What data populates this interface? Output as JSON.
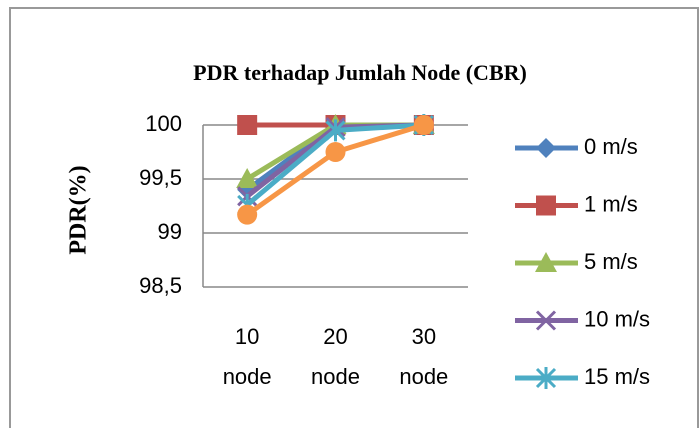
{
  "chart_data": {
    "type": "line",
    "title": "PDR terhadap Jumlah Node (CBR)",
    "y_label": "PDR(%)",
    "categories": [
      "10 node",
      "20 node",
      "30 node"
    ],
    "ylim": [
      98.5,
      100
    ],
    "yticks": [
      {
        "value": 98.5,
        "label": "98,5"
      },
      99,
      {
        "value": 99.5,
        "label": "99,5"
      },
      100
    ],
    "grid": true,
    "legend": "right",
    "series": [
      {
        "name": "0 m/s",
        "color": "#4f81bd",
        "marker": "diamond",
        "values": [
          99.4,
          100,
          100
        ]
      },
      {
        "name": "1 m/s",
        "color": "#c0504d",
        "marker": "square",
        "values": [
          100,
          100,
          100
        ]
      },
      {
        "name": "5 m/s",
        "color": "#9bbb59",
        "marker": "triangle",
        "values": [
          99.5,
          100,
          100
        ]
      },
      {
        "name": "10 m/s",
        "color": "#8064a2",
        "marker": "x",
        "values": [
          99.34,
          99.98,
          100
        ]
      },
      {
        "name": "15 m/s",
        "color": "#4bacc6",
        "marker": "star",
        "values": [
          99.26,
          99.95,
          100
        ]
      },
      {
        "name": null,
        "color": "#f79646",
        "marker": "circle",
        "values": [
          99.17,
          99.75,
          100
        ]
      }
    ]
  }
}
